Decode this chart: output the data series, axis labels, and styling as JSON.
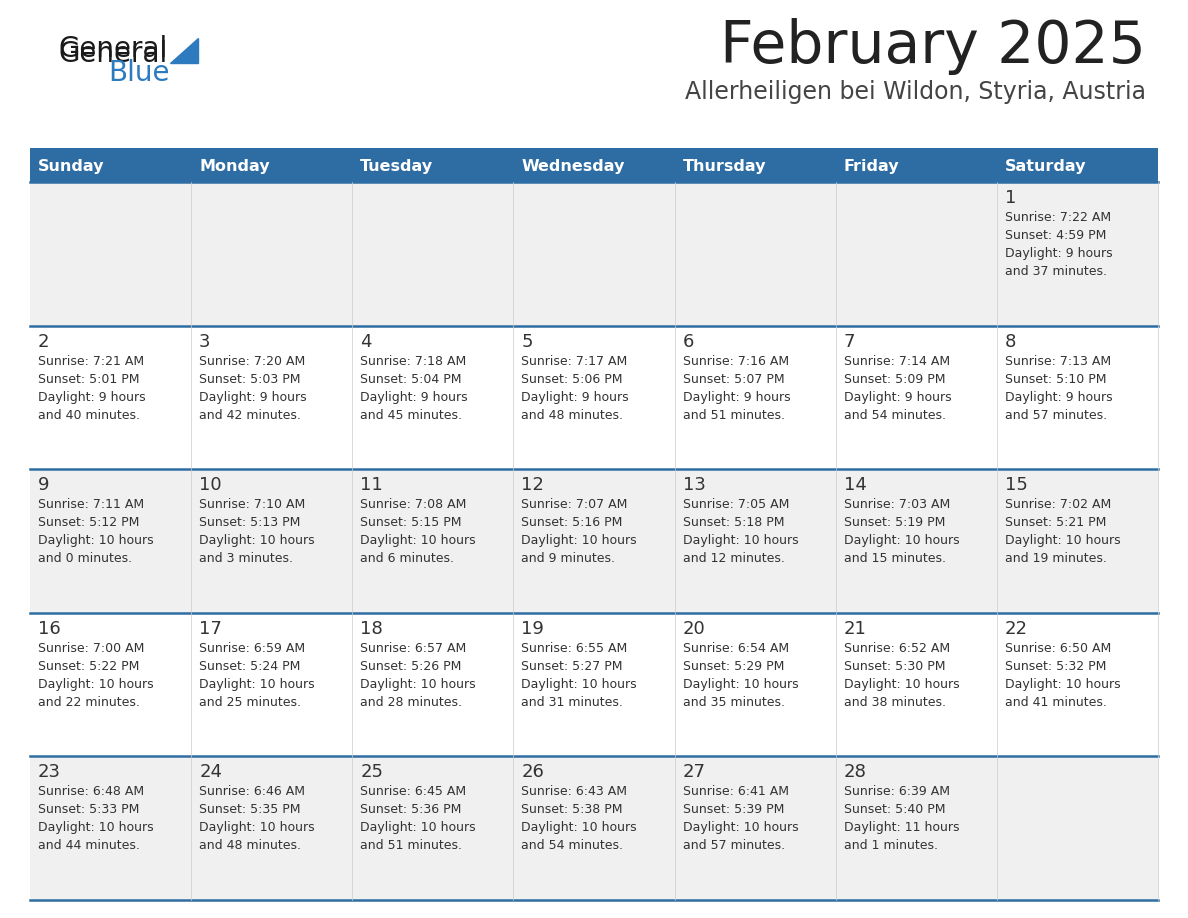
{
  "title": "February 2025",
  "subtitle": "Allerheiligen bei Wildon, Styria, Austria",
  "days_of_week": [
    "Sunday",
    "Monday",
    "Tuesday",
    "Wednesday",
    "Thursday",
    "Friday",
    "Saturday"
  ],
  "header_bg": "#2e6da4",
  "header_text": "#ffffff",
  "row_bg_odd": "#f0f0f0",
  "row_bg_even": "#ffffff",
  "cell_text_color": "#333333",
  "day_num_color": "#333333",
  "separator_color": "#2e6da4",
  "title_color": "#222222",
  "subtitle_color": "#444444",
  "logo_general_color": "#1a1a1a",
  "logo_blue_color": "#2e7abf",
  "calendar_data": [
    {
      "day": 1,
      "col": 6,
      "row": 0,
      "sunrise": "7:22 AM",
      "sunset": "4:59 PM",
      "daylight_hours": 9,
      "daylight_minutes": 37
    },
    {
      "day": 2,
      "col": 0,
      "row": 1,
      "sunrise": "7:21 AM",
      "sunset": "5:01 PM",
      "daylight_hours": 9,
      "daylight_minutes": 40
    },
    {
      "day": 3,
      "col": 1,
      "row": 1,
      "sunrise": "7:20 AM",
      "sunset": "5:03 PM",
      "daylight_hours": 9,
      "daylight_minutes": 42
    },
    {
      "day": 4,
      "col": 2,
      "row": 1,
      "sunrise": "7:18 AM",
      "sunset": "5:04 PM",
      "daylight_hours": 9,
      "daylight_minutes": 45
    },
    {
      "day": 5,
      "col": 3,
      "row": 1,
      "sunrise": "7:17 AM",
      "sunset": "5:06 PM",
      "daylight_hours": 9,
      "daylight_minutes": 48
    },
    {
      "day": 6,
      "col": 4,
      "row": 1,
      "sunrise": "7:16 AM",
      "sunset": "5:07 PM",
      "daylight_hours": 9,
      "daylight_minutes": 51
    },
    {
      "day": 7,
      "col": 5,
      "row": 1,
      "sunrise": "7:14 AM",
      "sunset": "5:09 PM",
      "daylight_hours": 9,
      "daylight_minutes": 54
    },
    {
      "day": 8,
      "col": 6,
      "row": 1,
      "sunrise": "7:13 AM",
      "sunset": "5:10 PM",
      "daylight_hours": 9,
      "daylight_minutes": 57
    },
    {
      "day": 9,
      "col": 0,
      "row": 2,
      "sunrise": "7:11 AM",
      "sunset": "5:12 PM",
      "daylight_hours": 10,
      "daylight_minutes": 0
    },
    {
      "day": 10,
      "col": 1,
      "row": 2,
      "sunrise": "7:10 AM",
      "sunset": "5:13 PM",
      "daylight_hours": 10,
      "daylight_minutes": 3
    },
    {
      "day": 11,
      "col": 2,
      "row": 2,
      "sunrise": "7:08 AM",
      "sunset": "5:15 PM",
      "daylight_hours": 10,
      "daylight_minutes": 6
    },
    {
      "day": 12,
      "col": 3,
      "row": 2,
      "sunrise": "7:07 AM",
      "sunset": "5:16 PM",
      "daylight_hours": 10,
      "daylight_minutes": 9
    },
    {
      "day": 13,
      "col": 4,
      "row": 2,
      "sunrise": "7:05 AM",
      "sunset": "5:18 PM",
      "daylight_hours": 10,
      "daylight_minutes": 12
    },
    {
      "day": 14,
      "col": 5,
      "row": 2,
      "sunrise": "7:03 AM",
      "sunset": "5:19 PM",
      "daylight_hours": 10,
      "daylight_minutes": 15
    },
    {
      "day": 15,
      "col": 6,
      "row": 2,
      "sunrise": "7:02 AM",
      "sunset": "5:21 PM",
      "daylight_hours": 10,
      "daylight_minutes": 19
    },
    {
      "day": 16,
      "col": 0,
      "row": 3,
      "sunrise": "7:00 AM",
      "sunset": "5:22 PM",
      "daylight_hours": 10,
      "daylight_minutes": 22
    },
    {
      "day": 17,
      "col": 1,
      "row": 3,
      "sunrise": "6:59 AM",
      "sunset": "5:24 PM",
      "daylight_hours": 10,
      "daylight_minutes": 25
    },
    {
      "day": 18,
      "col": 2,
      "row": 3,
      "sunrise": "6:57 AM",
      "sunset": "5:26 PM",
      "daylight_hours": 10,
      "daylight_minutes": 28
    },
    {
      "day": 19,
      "col": 3,
      "row": 3,
      "sunrise": "6:55 AM",
      "sunset": "5:27 PM",
      "daylight_hours": 10,
      "daylight_minutes": 31
    },
    {
      "day": 20,
      "col": 4,
      "row": 3,
      "sunrise": "6:54 AM",
      "sunset": "5:29 PM",
      "daylight_hours": 10,
      "daylight_minutes": 35
    },
    {
      "day": 21,
      "col": 5,
      "row": 3,
      "sunrise": "6:52 AM",
      "sunset": "5:30 PM",
      "daylight_hours": 10,
      "daylight_minutes": 38
    },
    {
      "day": 22,
      "col": 6,
      "row": 3,
      "sunrise": "6:50 AM",
      "sunset": "5:32 PM",
      "daylight_hours": 10,
      "daylight_minutes": 41
    },
    {
      "day": 23,
      "col": 0,
      "row": 4,
      "sunrise": "6:48 AM",
      "sunset": "5:33 PM",
      "daylight_hours": 10,
      "daylight_minutes": 44
    },
    {
      "day": 24,
      "col": 1,
      "row": 4,
      "sunrise": "6:46 AM",
      "sunset": "5:35 PM",
      "daylight_hours": 10,
      "daylight_minutes": 48
    },
    {
      "day": 25,
      "col": 2,
      "row": 4,
      "sunrise": "6:45 AM",
      "sunset": "5:36 PM",
      "daylight_hours": 10,
      "daylight_minutes": 51
    },
    {
      "day": 26,
      "col": 3,
      "row": 4,
      "sunrise": "6:43 AM",
      "sunset": "5:38 PM",
      "daylight_hours": 10,
      "daylight_minutes": 54
    },
    {
      "day": 27,
      "col": 4,
      "row": 4,
      "sunrise": "6:41 AM",
      "sunset": "5:39 PM",
      "daylight_hours": 10,
      "daylight_minutes": 57
    },
    {
      "day": 28,
      "col": 5,
      "row": 4,
      "sunrise": "6:39 AM",
      "sunset": "5:40 PM",
      "daylight_hours": 11,
      "daylight_minutes": 1
    }
  ]
}
